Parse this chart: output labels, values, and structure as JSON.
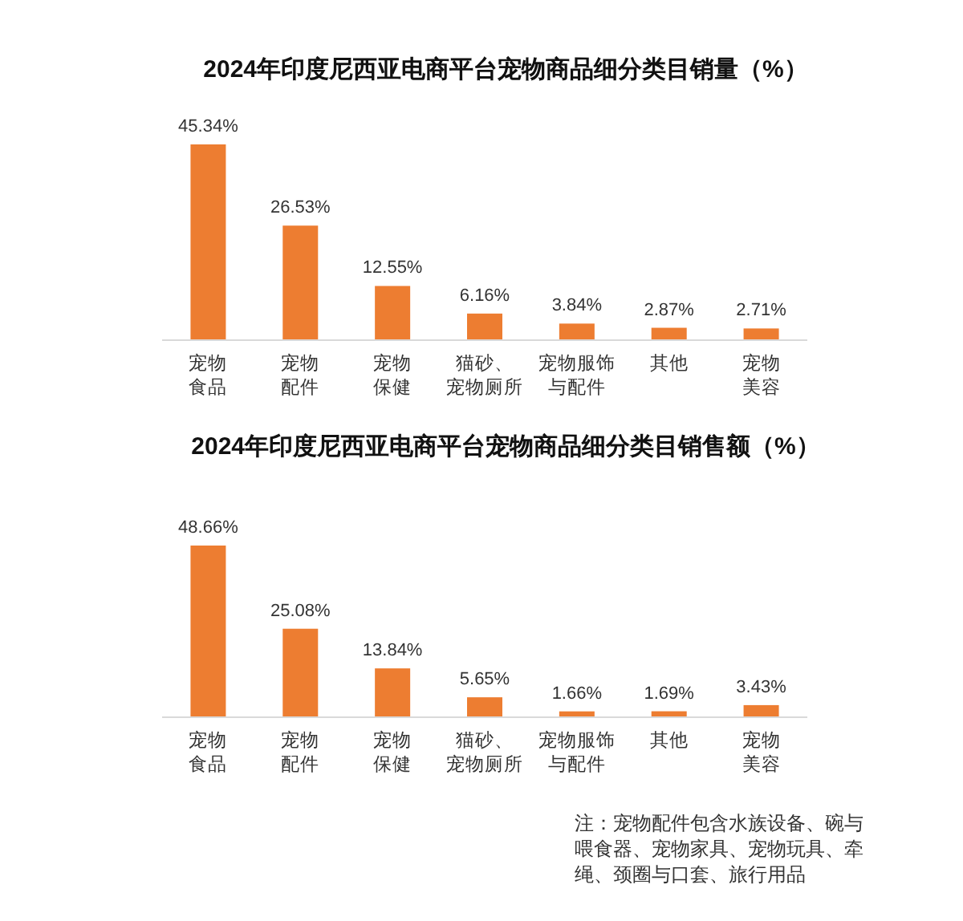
{
  "chart_data": [
    {
      "type": "bar",
      "title": "2024年印度尼西亚电商平台宠物商品细分类目销量（%）",
      "categories": [
        "宠物食品",
        "宠物配件",
        "宠物保健",
        "猫砂、宠物厕所",
        "宠物服饰与配件",
        "其他",
        "宠物美容"
      ],
      "values": [
        45.34,
        26.53,
        12.55,
        6.16,
        3.84,
        2.87,
        2.71
      ],
      "value_labels": [
        "45.34%",
        "26.53%",
        "12.55%",
        "6.16%",
        "3.84%",
        "2.87%",
        "2.71%"
      ],
      "color": "#ed7d31"
    },
    {
      "type": "bar",
      "title": "2024年印度尼西亚电商平台宠物商品细分类目销售额（%）",
      "categories": [
        "宠物食品",
        "宠物配件",
        "宠物保健",
        "猫砂、宠物厕所",
        "宠物服饰与配件",
        "其他",
        "宠物美容"
      ],
      "values": [
        48.66,
        25.08,
        13.84,
        5.65,
        1.66,
        1.69,
        3.43
      ],
      "value_labels": [
        "48.66%",
        "25.08%",
        "13.84%",
        "5.65%",
        "1.66%",
        "1.69%",
        "3.43%"
      ],
      "color": "#ed7d31",
      "annotations": [
        "注：宠物配件包含水族设备、碗与喂食器、宠物家具、宠物玩具、牵绳、颈圈与口套、旅行用品"
      ]
    }
  ]
}
